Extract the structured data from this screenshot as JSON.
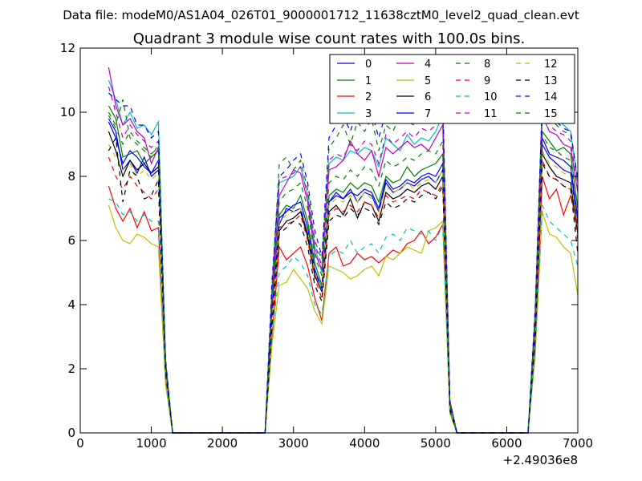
{
  "page_title": "Data file: modeM0/AS1A04_026T01_9000001712_11638cztM0_level2_quad_clean.evt",
  "chart_data": {
    "type": "line",
    "title": "Quadrant 3 module wise count rates with 100.0s bins.",
    "xlabel": "",
    "ylabel": "",
    "x_offset_label": "+2.49036e8",
    "xlim": [
      0,
      7000
    ],
    "ylim": [
      0,
      12
    ],
    "x_ticks": [
      0,
      1000,
      2000,
      3000,
      4000,
      5000,
      6000,
      7000
    ],
    "y_ticks": [
      0,
      2,
      4,
      6,
      8,
      10,
      12
    ],
    "grid": false,
    "legend_position": "top-right",
    "x": [
      400,
      500,
      600,
      700,
      800,
      900,
      1000,
      1100,
      1200,
      1300,
      2600,
      2700,
      2800,
      2900,
      3000,
      3100,
      3200,
      3300,
      3400,
      3500,
      3600,
      3700,
      3800,
      3900,
      4000,
      4100,
      4200,
      4300,
      4400,
      4500,
      4600,
      4700,
      4800,
      4900,
      5000,
      5100,
      5200,
      5300,
      5400,
      6300,
      6400,
      6500,
      6600,
      6700,
      6800,
      6900,
      7000
    ],
    "series": [
      {
        "name": "0",
        "color": "#0000ff",
        "dash": "solid",
        "values": [
          9.8,
          9.4,
          8.2,
          8.5,
          8.1,
          8.6,
          8.0,
          8.2,
          2.0,
          0,
          0,
          3.8,
          6.5,
          7.0,
          6.9,
          7.0,
          6.2,
          5.0,
          4.5,
          7.2,
          7.4,
          7.3,
          7.6,
          7.2,
          7.5,
          7.4,
          6.9,
          7.8,
          7.5,
          7.6,
          7.8,
          7.7,
          7.9,
          8.0,
          7.8,
          8.2,
          0.8,
          0,
          0,
          0,
          3.2,
          9.2,
          8.7,
          8.6,
          8.5,
          8.3,
          6.7
        ]
      },
      {
        "name": "1",
        "color": "#008000",
        "dash": "solid",
        "values": [
          10.2,
          9.8,
          8.6,
          8.7,
          8.8,
          8.4,
          8.6,
          8.8,
          2.1,
          0,
          0,
          4.0,
          6.8,
          7.1,
          7.0,
          7.4,
          6.6,
          5.3,
          4.6,
          7.4,
          7.6,
          7.5,
          7.8,
          7.6,
          7.8,
          7.7,
          7.2,
          8.0,
          7.8,
          7.9,
          8.3,
          8.0,
          8.2,
          8.3,
          8.4,
          8.7,
          0.9,
          0,
          0,
          0,
          3.3,
          9.4,
          9.1,
          8.8,
          8.9,
          8.7,
          7.0
        ]
      },
      {
        "name": "2",
        "color": "#ff0000",
        "dash": "solid",
        "values": [
          7.7,
          7.0,
          6.6,
          7.0,
          6.4,
          6.9,
          6.3,
          6.4,
          1.6,
          0,
          0,
          3.0,
          5.8,
          5.4,
          5.6,
          5.8,
          5.2,
          4.2,
          3.5,
          5.6,
          5.8,
          5.2,
          5.3,
          5.6,
          5.4,
          5.5,
          5.3,
          5.5,
          5.7,
          5.6,
          5.9,
          6.0,
          6.3,
          5.9,
          6.1,
          6.5,
          0.7,
          0,
          0,
          0,
          2.7,
          8.0,
          7.3,
          7.6,
          6.8,
          7.4,
          6.5
        ]
      },
      {
        "name": "3",
        "color": "#00bfbf",
        "dash": "solid",
        "values": [
          11.0,
          10.4,
          9.6,
          10.0,
          9.5,
          9.6,
          9.3,
          9.7,
          2.3,
          0,
          0,
          4.4,
          7.8,
          7.9,
          8.0,
          8.3,
          7.4,
          5.8,
          5.0,
          8.4,
          8.6,
          8.5,
          8.8,
          8.7,
          8.9,
          8.8,
          8.3,
          9.2,
          9.0,
          8.8,
          9.3,
          9.0,
          9.2,
          9.1,
          9.4,
          9.9,
          1.0,
          0,
          0,
          0,
          3.6,
          10.4,
          10.0,
          9.8,
          9.6,
          9.4,
          7.8
        ]
      },
      {
        "name": "4",
        "color": "#bf00bf",
        "dash": "solid",
        "values": [
          11.4,
          10.2,
          9.6,
          9.8,
          9.4,
          9.2,
          8.4,
          8.9,
          2.2,
          0,
          0,
          4.3,
          7.4,
          7.8,
          8.2,
          8.1,
          7.2,
          5.6,
          5.1,
          8.2,
          8.3,
          8.5,
          9.1,
          8.7,
          8.5,
          8.8,
          8.0,
          8.9,
          8.7,
          8.9,
          9.1,
          8.9,
          9.0,
          8.8,
          9.2,
          9.6,
          1.0,
          0,
          0,
          0,
          3.5,
          9.9,
          9.4,
          9.3,
          9.0,
          8.9,
          7.5
        ]
      },
      {
        "name": "5",
        "color": "#bfbf00",
        "dash": "solid",
        "values": [
          7.1,
          6.4,
          6.0,
          5.9,
          6.2,
          6.1,
          5.9,
          5.8,
          1.5,
          0,
          0,
          2.8,
          4.6,
          4.7,
          5.1,
          4.8,
          4.5,
          3.8,
          3.4,
          5.2,
          5.1,
          5.0,
          4.8,
          4.9,
          5.1,
          5.2,
          4.9,
          5.5,
          5.4,
          5.6,
          5.8,
          5.7,
          5.6,
          6.3,
          6.4,
          6.6,
          0.6,
          0,
          0,
          0,
          2.4,
          6.9,
          6.2,
          6.1,
          5.8,
          5.6,
          4.3
        ]
      },
      {
        "name": "6",
        "color": "#000000",
        "dash": "solid",
        "values": [
          9.4,
          8.8,
          8.0,
          8.5,
          8.2,
          8.4,
          8.1,
          8.3,
          2.0,
          0,
          0,
          3.7,
          6.3,
          6.6,
          6.7,
          6.9,
          6.1,
          4.9,
          4.4,
          6.9,
          7.1,
          6.8,
          7.3,
          6.7,
          7.2,
          7.1,
          6.6,
          7.5,
          7.3,
          7.4,
          7.6,
          7.5,
          7.7,
          7.8,
          7.6,
          8.0,
          0.8,
          0,
          0,
          0,
          3.1,
          8.7,
          8.3,
          8.0,
          7.9,
          7.8,
          6.2
        ]
      },
      {
        "name": "7",
        "color": "#0000ff",
        "dash": "solid",
        "values": [
          9.7,
          9.2,
          8.4,
          8.8,
          8.6,
          8.3,
          8.1,
          8.5,
          2.0,
          0,
          0,
          3.8,
          6.7,
          6.9,
          7.1,
          7.2,
          6.4,
          5.1,
          4.5,
          7.2,
          7.5,
          7.3,
          7.5,
          7.4,
          7.6,
          7.5,
          7.0,
          7.9,
          7.6,
          7.7,
          7.9,
          7.8,
          8.0,
          8.1,
          8.0,
          8.4,
          0.8,
          0,
          0,
          0,
          3.2,
          9.0,
          8.6,
          8.4,
          8.2,
          8.1,
          6.5
        ]
      },
      {
        "name": "8",
        "color": "#008000",
        "dash": "dashed",
        "values": [
          10.0,
          9.6,
          10.4,
          9.2,
          9.0,
          8.8,
          8.6,
          9.0,
          2.2,
          0,
          0,
          4.6,
          8.4,
          8.6,
          8.2,
          8.5,
          7.6,
          6.0,
          5.4,
          8.9,
          9.2,
          9.6,
          9.0,
          9.7,
          9.4,
          9.8,
          8.8,
          9.6,
          9.4,
          9.9,
          9.7,
          9.6,
          9.8,
          9.9,
          10.0,
          10.2,
          1.0,
          0,
          0,
          0,
          3.8,
          10.2,
          9.8,
          9.6,
          9.4,
          9.3,
          7.9
        ]
      },
      {
        "name": "9",
        "color": "#ff0000",
        "dash": "dashed",
        "values": [
          8.6,
          8.0,
          7.6,
          8.0,
          7.7,
          7.5,
          7.3,
          7.6,
          1.8,
          0,
          0,
          3.4,
          6.4,
          6.5,
          6.6,
          6.8,
          6.0,
          4.8,
          4.2,
          6.8,
          7.0,
          6.9,
          7.1,
          6.9,
          7.2,
          7.1,
          6.7,
          7.4,
          7.2,
          7.3,
          7.4,
          7.3,
          7.6,
          7.5,
          7.4,
          7.8,
          0.7,
          0,
          0,
          0,
          3.0,
          8.5,
          8.0,
          7.9,
          7.7,
          7.6,
          6.0
        ]
      },
      {
        "name": "10",
        "color": "#00bfbf",
        "dash": "dashed",
        "values": [
          7.3,
          7.2,
          6.8,
          6.9,
          6.6,
          6.8,
          6.6,
          6.6,
          1.7,
          0,
          0,
          3.1,
          5.0,
          5.2,
          5.5,
          5.3,
          4.9,
          4.0,
          3.7,
          5.5,
          5.7,
          5.6,
          6.0,
          5.6,
          5.8,
          5.9,
          5.6,
          6.1,
          6.2,
          6.0,
          6.4,
          6.3,
          6.2,
          6.3,
          6.0,
          6.5,
          0.7,
          0,
          0,
          0,
          2.6,
          7.1,
          6.6,
          6.4,
          6.2,
          6.0,
          5.2
        ]
      },
      {
        "name": "11",
        "color": "#bf00bf",
        "dash": "dashed",
        "values": [
          10.8,
          10.0,
          9.2,
          9.6,
          9.3,
          9.1,
          8.9,
          9.1,
          2.2,
          0,
          0,
          4.4,
          7.9,
          8.0,
          8.1,
          8.3,
          7.4,
          5.9,
          5.2,
          8.5,
          8.7,
          8.6,
          9.0,
          8.8,
          9.1,
          9.0,
          8.4,
          9.3,
          9.0,
          9.2,
          9.4,
          9.2,
          9.5,
          9.4,
          9.6,
          10.1,
          1.0,
          0,
          0,
          0,
          3.6,
          10.0,
          9.6,
          9.4,
          9.3,
          9.1,
          7.6
        ]
      },
      {
        "name": "12",
        "color": "#bfbf00",
        "dash": "dashed",
        "values": [
          9.0,
          8.6,
          8.2,
          8.4,
          8.0,
          8.2,
          7.9,
          8.1,
          1.9,
          0,
          0,
          3.6,
          6.6,
          6.8,
          6.9,
          7.0,
          6.3,
          5.0,
          4.5,
          7.1,
          7.3,
          7.2,
          7.4,
          7.2,
          7.5,
          7.3,
          6.9,
          7.7,
          7.5,
          7.6,
          7.8,
          7.6,
          7.8,
          7.9,
          7.8,
          8.2,
          0.8,
          0,
          0,
          0,
          3.1,
          8.8,
          8.4,
          8.3,
          8.1,
          8.0,
          6.4
        ]
      },
      {
        "name": "13",
        "color": "#000000",
        "dash": "dashed",
        "values": [
          8.8,
          9.2,
          7.2,
          8.2,
          8.0,
          7.3,
          7.4,
          7.9,
          1.9,
          0,
          0,
          3.4,
          6.2,
          6.4,
          6.6,
          6.5,
          5.8,
          4.6,
          4.1,
          6.6,
          6.8,
          6.7,
          7.0,
          6.8,
          7.0,
          6.9,
          6.5,
          7.2,
          7.0,
          7.1,
          7.3,
          7.2,
          7.4,
          7.5,
          7.3,
          7.7,
          0.7,
          0,
          0,
          0,
          2.9,
          8.4,
          8.0,
          7.9,
          7.7,
          7.6,
          5.6
        ]
      },
      {
        "name": "14",
        "color": "#0000ff",
        "dash": "dashed",
        "values": [
          10.6,
          10.4,
          10.2,
          10.2,
          9.6,
          9.6,
          9.2,
          9.4,
          2.3,
          0,
          0,
          4.8,
          8.0,
          8.2,
          8.5,
          8.7,
          7.8,
          6.3,
          5.5,
          9.2,
          9.6,
          9.9,
          9.4,
          10.1,
          9.7,
          10.0,
          9.2,
          10.0,
          9.8,
          10.2,
          10.0,
          9.9,
          10.1,
          10.3,
          10.4,
          10.5,
          1.0,
          0,
          0,
          0,
          3.9,
          10.3,
          9.9,
          9.7,
          9.5,
          9.4,
          7.9
        ]
      },
      {
        "name": "15",
        "color": "#008000",
        "dash": "dashed",
        "values": [
          9.9,
          9.5,
          9.0,
          9.4,
          9.1,
          8.9,
          8.7,
          8.9,
          2.1,
          0,
          0,
          4.1,
          7.2,
          7.5,
          7.6,
          7.8,
          7.0,
          5.5,
          4.9,
          7.8,
          8.0,
          7.9,
          8.2,
          8.0,
          8.3,
          8.2,
          7.7,
          8.5,
          8.3,
          8.4,
          8.6,
          8.5,
          8.7,
          8.8,
          8.7,
          9.1,
          0.9,
          0,
          0,
          0,
          3.4,
          9.3,
          8.9,
          8.8,
          8.6,
          8.5,
          7.0
        ]
      }
    ]
  }
}
